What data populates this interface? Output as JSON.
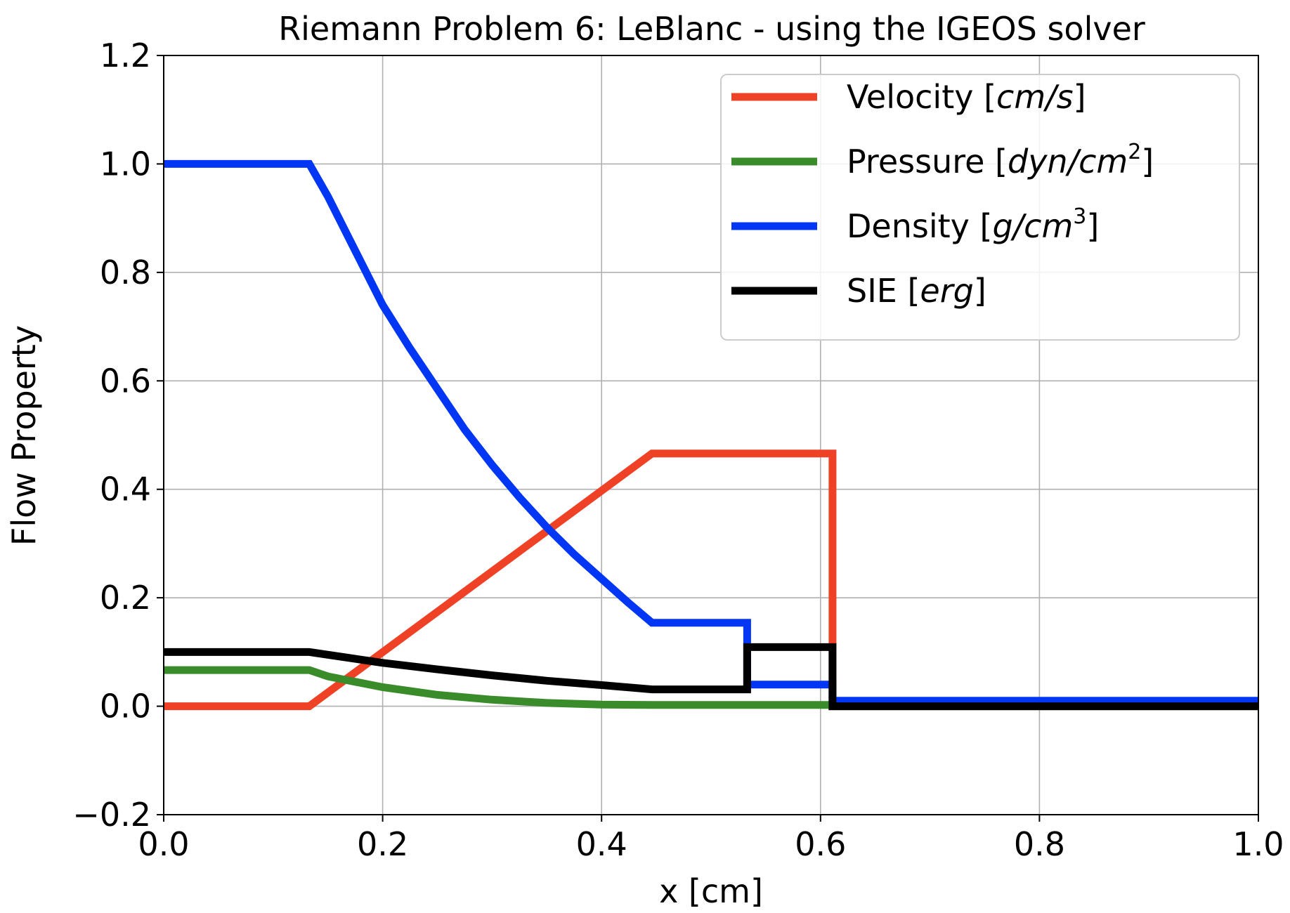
{
  "chart_data": {
    "type": "line",
    "title": "Riemann Problem 6: LeBlanc - using the IGEOS solver",
    "xlabel": "x [cm]",
    "ylabel": "Flow Property",
    "xlim": [
      0.0,
      1.0
    ],
    "ylim": [
      -0.2,
      1.2
    ],
    "xticks": [
      "0.0",
      "0.2",
      "0.4",
      "0.6",
      "0.8",
      "1.0"
    ],
    "yticks": [
      "−0.2",
      "0.0",
      "0.2",
      "0.4",
      "0.6",
      "0.8",
      "1.0",
      "1.2"
    ],
    "grid": true,
    "legend_placement": "top-right",
    "series": [
      {
        "name": "Velocity",
        "unit": "cm/s",
        "color": "#ee4125",
        "x": [
          0.0,
          0.133,
          0.446,
          0.611,
          0.611,
          1.0
        ],
        "y": [
          0.0,
          0.0,
          0.466,
          0.466,
          0.0,
          0.0
        ]
      },
      {
        "name": "Pressure",
        "unit": "dyn/cm",
        "unit_exponent": "2",
        "color": "#3a8c2a",
        "x": [
          0.0,
          0.133,
          0.15,
          0.2,
          0.25,
          0.3,
          0.35,
          0.4,
          0.446,
          0.611,
          0.611,
          1.0
        ],
        "y": [
          0.0667,
          0.0667,
          0.055,
          0.035,
          0.021,
          0.012,
          0.006,
          0.003,
          0.0024,
          0.0024,
          0.0,
          0.0
        ]
      },
      {
        "name": "Density",
        "unit": "g/cm",
        "unit_exponent": "3",
        "color": "#0236f5",
        "x": [
          0.0,
          0.133,
          0.15,
          0.175,
          0.2,
          0.225,
          0.25,
          0.275,
          0.3,
          0.325,
          0.35,
          0.375,
          0.4,
          0.425,
          0.446,
          0.533,
          0.533,
          0.611,
          0.611,
          1.0
        ],
        "y": [
          1.0,
          1.0,
          0.94,
          0.84,
          0.74,
          0.66,
          0.585,
          0.51,
          0.445,
          0.385,
          0.33,
          0.28,
          0.235,
          0.19,
          0.154,
          0.154,
          0.04,
          0.04,
          0.01,
          0.01
        ]
      },
      {
        "name": "SIE",
        "unit": "erg",
        "color": "#000000",
        "x": [
          0.0,
          0.133,
          0.2,
          0.25,
          0.3,
          0.35,
          0.4,
          0.446,
          0.533,
          0.533,
          0.611,
          0.611,
          1.0
        ],
        "y": [
          0.1,
          0.1,
          0.08,
          0.068,
          0.057,
          0.047,
          0.039,
          0.031,
          0.031,
          0.109,
          0.109,
          0.0,
          0.0
        ]
      }
    ]
  }
}
